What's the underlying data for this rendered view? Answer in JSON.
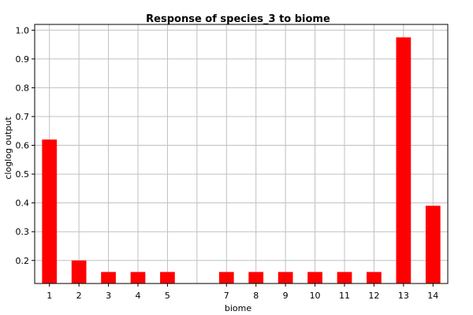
{
  "chart_data": {
    "type": "bar",
    "title": "Response of species_3 to biome",
    "xlabel": "biome",
    "ylabel": "cloglog output",
    "categories": [
      "1",
      "2",
      "3",
      "4",
      "5",
      "",
      "7",
      "8",
      "9",
      "10",
      "11",
      "12",
      "13",
      "14"
    ],
    "values": [
      0.62,
      0.2,
      0.16,
      0.16,
      0.16,
      null,
      0.16,
      0.16,
      0.16,
      0.16,
      0.16,
      0.16,
      0.975,
      0.39
    ],
    "y_ticks": [
      0.2,
      0.3,
      0.4,
      0.5,
      0.6,
      0.7,
      0.8,
      0.9,
      1.0
    ],
    "y_tick_labels": [
      "0.2",
      "0.3",
      "0.4",
      "0.5",
      "0.6",
      "0.7",
      "0.8",
      "0.9",
      "1.0"
    ],
    "ylim": [
      0.12,
      1.02
    ],
    "grid": true,
    "colors": {
      "bar": "#ff0000",
      "grid": "#c0c0c0",
      "axis": "#000000"
    }
  }
}
